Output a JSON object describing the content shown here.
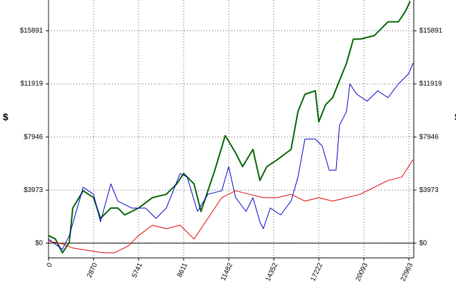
{
  "chart_data": {
    "type": "line",
    "ylabel": "$",
    "y2label": "$",
    "xlim": [
      0,
      23270
    ],
    "ylim": [
      -1100,
      18200
    ],
    "y2lim": [
      -1100,
      18200
    ],
    "xticks": [
      0,
      2870,
      5741,
      8611,
      11482,
      14352,
      17222,
      20093,
      22963
    ],
    "yticks": [
      {
        "value": 0,
        "label": "$0"
      },
      {
        "value": 3973,
        "label": "$3973"
      },
      {
        "value": 7946,
        "label": "$7946"
      },
      {
        "value": 11919,
        "label": "$11919"
      },
      {
        "value": 15891,
        "label": "$15891"
      }
    ],
    "y2ticks": [
      {
        "value": 0,
        "label": "$0"
      },
      {
        "value": 3973,
        "label": "$3973"
      },
      {
        "value": 7946,
        "label": "$7946"
      },
      {
        "value": 11919,
        "label": "$11919"
      },
      {
        "value": 15891,
        "label": "$15891"
      }
    ],
    "grid": true,
    "series": [
      {
        "color": "#006400",
        "width": 2,
        "x": [
          0,
          442,
          883,
          1325,
          1545,
          2208,
          2870,
          3311,
          3974,
          4415,
          4857,
          5740,
          6623,
          7506,
          8168,
          8609,
          9272,
          9713,
          10155,
          10596,
          11258,
          11921,
          12362,
          13024,
          13466,
          13907,
          14570,
          15453,
          15894,
          16336,
          16998,
          17219,
          17660,
          18102,
          18543,
          18985,
          19426,
          19868,
          20751,
          21634,
          22296,
          22737,
          23046
        ],
        "values": [
          568,
          310,
          -722,
          52,
          2632,
          3922,
          3406,
          1858,
          2632,
          2632,
          2116,
          2632,
          3406,
          3664,
          4438,
          5212,
          4438,
          2374,
          3922,
          5470,
          8050,
          6760,
          5728,
          7018,
          4696,
          5728,
          6244,
          7018,
          9856,
          11146,
          11404,
          9082,
          10372,
          10888,
          12178,
          13468,
          15274,
          15274,
          15532,
          16564,
          16564,
          17338,
          18112
        ]
      },
      {
        "color": "#0000cc",
        "width": 1,
        "x": [
          0,
          883,
          1325,
          2208,
          2870,
          3311,
          3974,
          4415,
          5298,
          6181,
          6843,
          7506,
          8389,
          8830,
          9492,
          10155,
          11038,
          11479,
          11921,
          12583,
          13024,
          13466,
          13687,
          14128,
          14790,
          15453,
          15894,
          16336,
          16998,
          17439,
          17881,
          18322,
          18543,
          18985,
          19205,
          19647,
          20309,
          20971,
          21634,
          22296,
          22958,
          23223
        ],
        "values": [
          310,
          -464,
          568,
          4180,
          3664,
          1600,
          4438,
          3148,
          2632,
          2632,
          1858,
          2632,
          5212,
          4954,
          2374,
          3664,
          3922,
          5728,
          3406,
          2374,
          3406,
          1600,
          1084,
          2632,
          2116,
          3148,
          4954,
          7792,
          7792,
          7276,
          5470,
          5470,
          8824,
          9856,
          11920,
          11146,
          10630,
          11404,
          10888,
          11920,
          12694,
          13468
        ]
      },
      {
        "color": "#dd0000",
        "width": 1,
        "x": [
          0,
          883,
          1545,
          2649,
          3532,
          4194,
          5077,
          5740,
          6623,
          7506,
          8389,
          9272,
          9713,
          10155,
          11038,
          11921,
          12804,
          13687,
          14570,
          15453,
          16336,
          17219,
          18102,
          18985,
          19868,
          20751,
          21634,
          22517,
          23223
        ],
        "values": [
          155,
          -52,
          -361,
          -568,
          -722,
          -722,
          -206,
          568,
          1342,
          1084,
          1342,
          310,
          1084,
          1858,
          3406,
          3922,
          3664,
          3406,
          3406,
          3664,
          3148,
          3406,
          3148,
          3406,
          3664,
          4180,
          4696,
          4954,
          6244
        ]
      }
    ]
  }
}
